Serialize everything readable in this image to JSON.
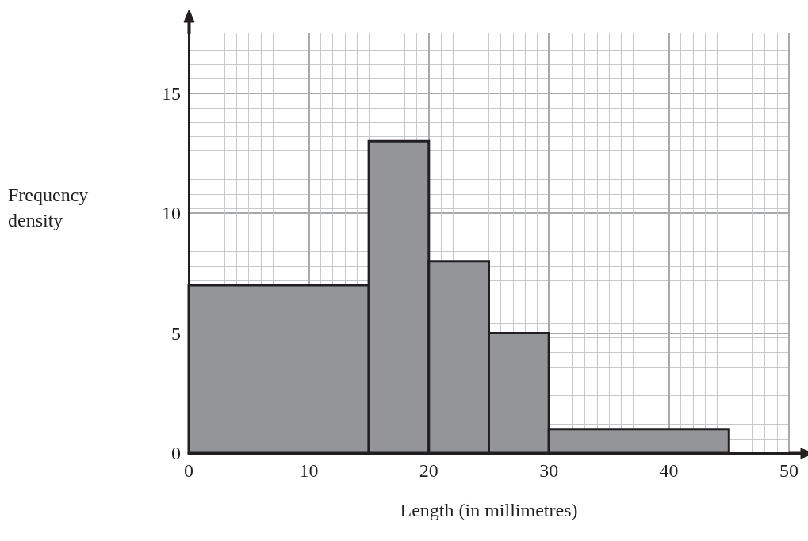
{
  "chart_data": {
    "type": "histogram",
    "xlabel": "Length (in millimetres)",
    "ylabel": "Frequency density",
    "bins": [
      0,
      15,
      20,
      25,
      30,
      45
    ],
    "values": [
      7,
      13,
      8,
      5,
      1
    ],
    "color": "#939598",
    "xlim": [
      0,
      50
    ],
    "xticks": [
      0,
      10,
      20,
      30,
      40,
      50
    ],
    "ylim": [
      0,
      17.5
    ],
    "yticks": [
      0,
      5,
      10,
      15
    ],
    "grid": true
  }
}
